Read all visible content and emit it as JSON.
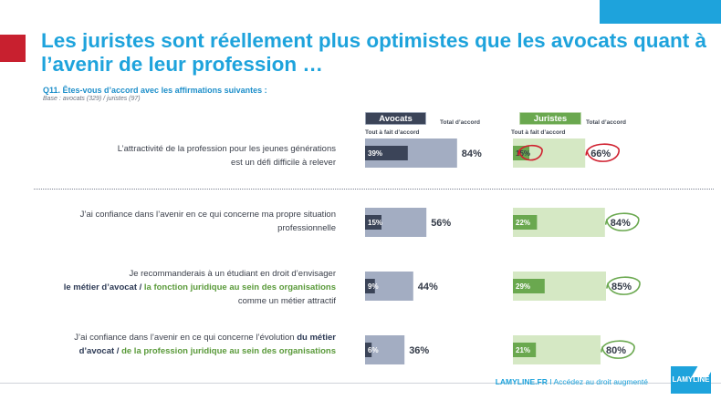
{
  "title": "Les juristes sont réellement plus optimistes que les avocats quant à l’avenir de leur profession …",
  "question": "Q11. Êtes-vous d’accord avec les affirmations suivantes :",
  "base": "Base : avocats (329) / juristes (97)",
  "groups": {
    "avocats": "Avocats",
    "juristes": "Juristes",
    "tout_a_fait": "Tout à fait d’accord",
    "total": "Total d’accord"
  },
  "statements": [
    {
      "line1": "L’attractivité de la profession pour les jeunes générations",
      "line2": "est un défi difficile à relever"
    },
    {
      "line1": "J’ai confiance dans l’avenir en ce qui concerne ma propre situation",
      "line2": "professionnelle"
    },
    {
      "line1": "Je recommanderais à un étudiant en droit d’envisager",
      "l2_av": "le métier d’avocat",
      "l2_sep": " / ",
      "l2_ju": "la fonction juridique au sein des organisations",
      "line3": "comme un métier attractif"
    },
    {
      "line1_pre": "J’ai confiance dans l’avenir en ce qui concerne l’évolution ",
      "line1_av": "du métier",
      "l2_av": "d’avocat",
      "l2_sep": " / ",
      "l2_ju": "de la profession juridique au sein des organisations"
    }
  ],
  "footer": {
    "brand": "LAMYLINE.FR",
    "separator": "I",
    "tagline": "Accédez au droit augmenté",
    "logo": "LAMYLINE"
  },
  "colors": {
    "title_blue": "#1ea3dc",
    "avocats_dark": "#3b4458",
    "avocats_light": "#a3adc2",
    "juristes_dark": "#6aa84f",
    "juristes_light": "#d5e8c4",
    "circle_red": "#d0202f",
    "circle_green": "#6aa84f"
  },
  "chart_data": {
    "type": "bar",
    "categories": [
      "L’attractivité de la profession pour les jeunes générations est un défi difficile à relever",
      "J’ai confiance dans l’avenir en ce qui concerne ma propre situation professionnelle",
      "Je recommanderais à un étudiant en droit d’envisager le métier d’avocat / la fonction juridique au sein des organisations comme un métier attractif",
      "J’ai confiance dans l’avenir en ce qui concerne l’évolution du métier d’avocat / de la profession juridique au sein des organisations"
    ],
    "series": [
      {
        "name": "Avocats – Tout à fait d’accord",
        "values": [
          39,
          15,
          9,
          6
        ],
        "labels": [
          "39%",
          "15%",
          "9%",
          "6%"
        ]
      },
      {
        "name": "Avocats – Total d’accord",
        "values": [
          84,
          56,
          44,
          36
        ],
        "labels": [
          "84%",
          "56%",
          "44%",
          "36%"
        ]
      },
      {
        "name": "Juristes – Tout à fait d’accord",
        "values": [
          15,
          22,
          29,
          21
        ],
        "labels": [
          "15%",
          "22%",
          "29%",
          "21%"
        ]
      },
      {
        "name": "Juristes – Total d’accord",
        "values": [
          66,
          84,
          85,
          80
        ],
        "labels": [
          "66%",
          "84%",
          "85%",
          "80%"
        ]
      }
    ],
    "circled_totals": {
      "juristes_row1": "red",
      "juristes_rows2to4": "green",
      "juristes_row1_tout_a_fait": "red"
    },
    "ylim": [
      0,
      100
    ]
  }
}
